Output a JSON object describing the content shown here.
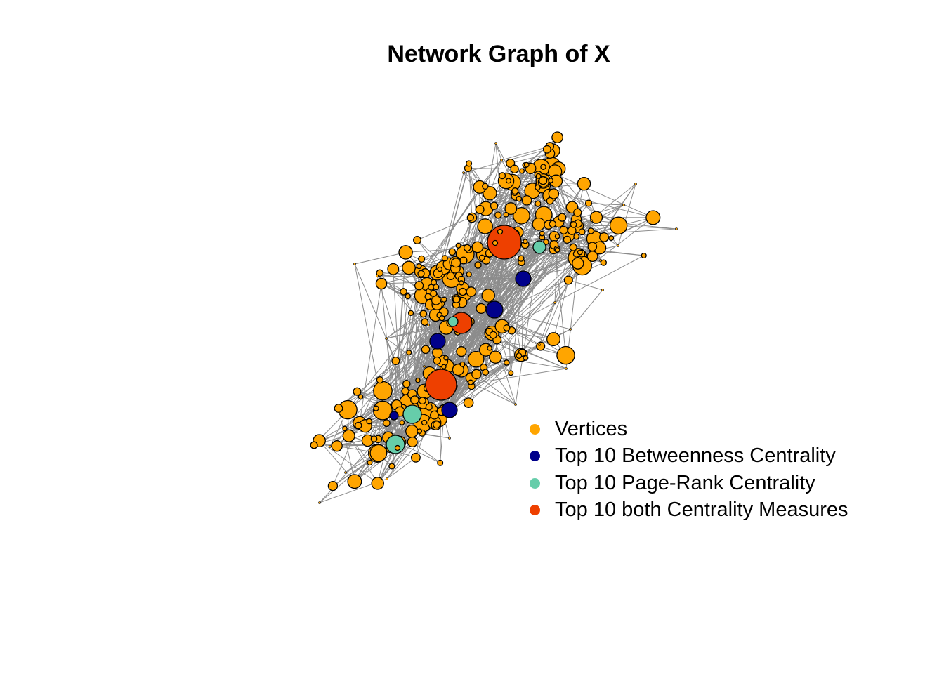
{
  "title": "Network Graph of X",
  "colors": {
    "vertices": "#FFA500",
    "betweenness": "#00008B",
    "pagerank": "#66CDAA",
    "both": "#EE4000",
    "edge": "#8c8c8c"
  },
  "legend": {
    "items": [
      {
        "label": "Vertices",
        "color": "#FFA500"
      },
      {
        "label": "Top 10 Betweenness Centrality",
        "color": "#00008B"
      },
      {
        "label": "Top 10 Page-Rank Centrality",
        "color": "#66CDAA"
      },
      {
        "label": "Top 10 both Centrality Measures",
        "color": "#EE4000"
      }
    ]
  }
}
